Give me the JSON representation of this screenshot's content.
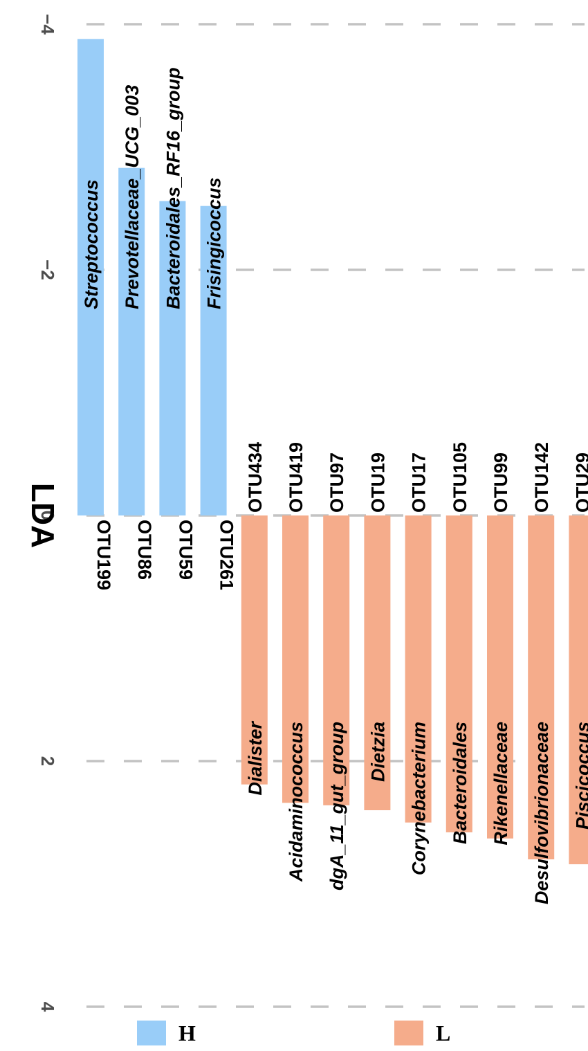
{
  "chart_data": {
    "type": "bar",
    "orientation": "horizontal-rotated",
    "xlabel": "LDA",
    "xlim": [
      -4,
      4
    ],
    "ticks": [
      -4,
      -2,
      0,
      2,
      4
    ],
    "tick_labels": [
      "−4",
      "−2",
      "0",
      "2",
      "4"
    ],
    "grid": true,
    "legend_position": "bottom",
    "groups": [
      {
        "name": "H",
        "color": "#99cdf8"
      },
      {
        "name": "L",
        "color": "#f5ac8b"
      }
    ],
    "bars": [
      {
        "otu": "OTU199",
        "taxon": "Streptococcus",
        "group": "H",
        "lda": -3.88
      },
      {
        "otu": "OTU86",
        "taxon": "Prevotellaceae_UCG_003",
        "group": "H",
        "lda": -2.83
      },
      {
        "otu": "OTU59",
        "taxon": "Bacteroidales_RF16_group",
        "group": "H",
        "lda": -2.56
      },
      {
        "otu": "OTU261",
        "taxon": "Frisingicoccus",
        "group": "H",
        "lda": -2.52
      },
      {
        "otu": "OTU434",
        "taxon": "Dialister",
        "group": "L",
        "lda": 2.19
      },
      {
        "otu": "OTU419",
        "taxon": "Acidaminococcus",
        "group": "L",
        "lda": 2.34
      },
      {
        "otu": "OTU97",
        "taxon": "dgA_11_gut_group",
        "group": "L",
        "lda": 2.36
      },
      {
        "otu": "OTU19",
        "taxon": "Dietzia",
        "group": "L",
        "lda": 2.4
      },
      {
        "otu": "OTU17",
        "taxon": "Corynebacterium",
        "group": "L",
        "lda": 2.5
      },
      {
        "otu": "OTU105",
        "taxon": "Bacteroidales",
        "group": "L",
        "lda": 2.58
      },
      {
        "otu": "OTU99",
        "taxon": "Rikenellaceae",
        "group": "L",
        "lda": 2.63
      },
      {
        "otu": "OTU142",
        "taxon": "Desulfovibrionaceae",
        "group": "L",
        "lda": 2.8
      },
      {
        "otu": "OTU29",
        "taxon": "Piscicoccus",
        "group": "L",
        "lda": 2.84
      }
    ]
  }
}
